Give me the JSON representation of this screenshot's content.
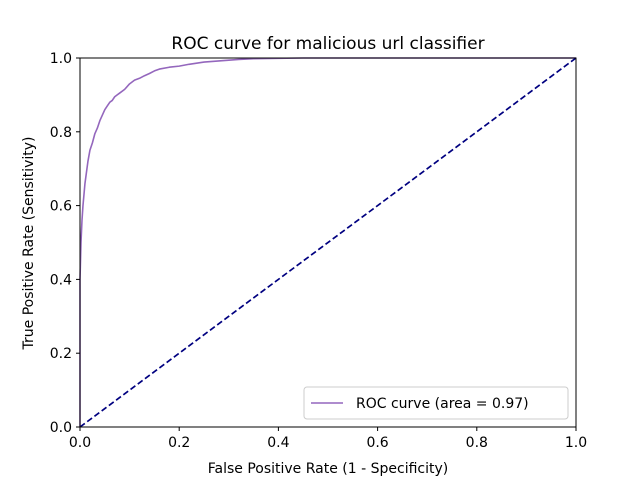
{
  "chart_data": {
    "type": "line",
    "title": "ROC curve for malicious url classifier",
    "xlabel": "False Positive Rate (1 - Specificity)",
    "ylabel": "True Positive Rate (Sensitivity)",
    "xlim": [
      0.0,
      1.0
    ],
    "ylim": [
      0.0,
      1.0
    ],
    "xticks": [
      "0.0",
      "0.2",
      "0.4",
      "0.6",
      "0.8",
      "1.0"
    ],
    "yticks": [
      "0.0",
      "0.2",
      "0.4",
      "0.6",
      "0.8",
      "1.0"
    ],
    "grid": false,
    "legend_position": "bottom-right",
    "series": [
      {
        "name": "ROC curve (area = 0.97)",
        "color": "#9467bd",
        "style": "solid",
        "x": [
          0.0,
          0.0,
          0.002,
          0.004,
          0.006,
          0.008,
          0.01,
          0.013,
          0.016,
          0.02,
          0.025,
          0.03,
          0.035,
          0.04,
          0.045,
          0.05,
          0.055,
          0.06,
          0.065,
          0.07,
          0.075,
          0.08,
          0.09,
          0.1,
          0.11,
          0.12,
          0.13,
          0.14,
          0.15,
          0.16,
          0.18,
          0.2,
          0.22,
          0.25,
          0.28,
          0.3,
          0.32,
          0.35,
          0.4,
          0.45,
          0.5,
          0.6,
          0.7,
          0.8,
          0.9,
          1.0
        ],
        "y": [
          0.0,
          0.4,
          0.5,
          0.56,
          0.6,
          0.63,
          0.66,
          0.69,
          0.72,
          0.75,
          0.77,
          0.795,
          0.81,
          0.83,
          0.845,
          0.86,
          0.87,
          0.88,
          0.885,
          0.895,
          0.9,
          0.905,
          0.915,
          0.93,
          0.94,
          0.945,
          0.952,
          0.958,
          0.965,
          0.97,
          0.975,
          0.978,
          0.983,
          0.989,
          0.992,
          0.994,
          0.996,
          0.998,
          0.999,
          1.0,
          1.0,
          1.0,
          1.0,
          1.0,
          1.0,
          1.0
        ]
      },
      {
        "name": "",
        "color": "#000080",
        "style": "dashed",
        "x": [
          0.0,
          1.0
        ],
        "y": [
          0.0,
          1.0
        ]
      }
    ]
  }
}
